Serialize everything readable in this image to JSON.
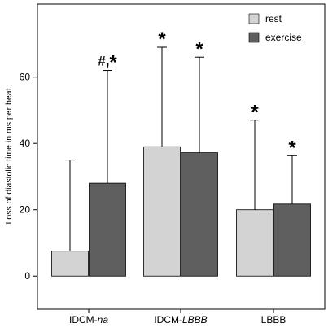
{
  "chart_data": {
    "type": "bar",
    "categories": [
      {
        "prefix": "IDCM-",
        "italic": "na"
      },
      {
        "prefix": "IDCM-",
        "italic": "LBBB"
      },
      {
        "prefix": "LBBB",
        "italic": ""
      }
    ],
    "series": [
      {
        "name": "rest",
        "color": "#d3d3d3",
        "values": [
          7.5,
          39,
          20
        ],
        "error_upper": [
          35,
          69,
          47
        ],
        "annotations": [
          "",
          "*",
          "*"
        ]
      },
      {
        "name": "exercise",
        "color": "#5f5f5f",
        "values": [
          28,
          37.2,
          21.7
        ],
        "error_upper": [
          62,
          66,
          36.3
        ],
        "annotations": [
          "#,*",
          "*",
          "*"
        ]
      }
    ],
    "ylabel": "Loss of diastolic time in ms per beat",
    "xlabel": "",
    "ylim": [
      -10,
      82
    ],
    "yticks": [
      0,
      20,
      40,
      60
    ],
    "grid": false,
    "legend_position": "top-right"
  }
}
